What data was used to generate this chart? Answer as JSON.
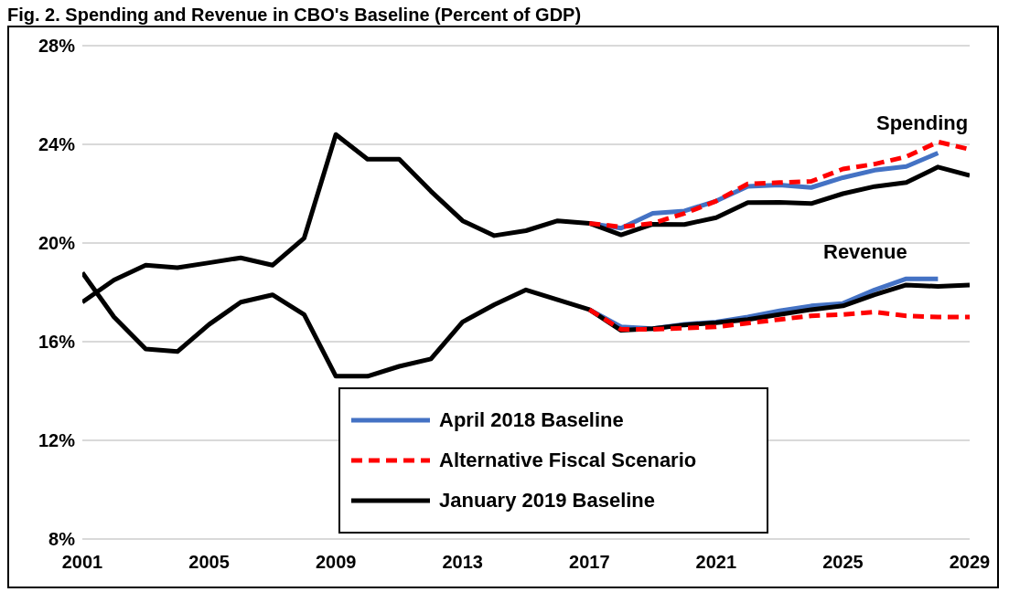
{
  "chart_data": {
    "type": "line",
    "title": "Fig. 2. Spending and Revenue in CBO's Baseline (Percent of GDP)",
    "x": [
      2001,
      2002,
      2003,
      2004,
      2005,
      2006,
      2007,
      2008,
      2009,
      2010,
      2011,
      2012,
      2013,
      2014,
      2015,
      2016,
      2017,
      2018,
      2019,
      2020,
      2021,
      2022,
      2023,
      2024,
      2025,
      2026,
      2027,
      2028,
      2029
    ],
    "series": [
      {
        "name": "April 2018 Baseline",
        "color": "#4472c4",
        "line_style": "solid",
        "values": [
          null,
          null,
          null,
          null,
          null,
          null,
          null,
          null,
          null,
          null,
          null,
          null,
          null,
          null,
          null,
          null,
          20.8,
          20.6,
          21.2,
          21.3,
          21.7,
          22.3,
          22.35,
          22.25,
          22.65,
          22.95,
          23.1,
          23.65,
          null
        ]
      },
      {
        "color": "#4472c4",
        "line_style": "solid",
        "values": [
          null,
          null,
          null,
          null,
          null,
          null,
          null,
          null,
          null,
          null,
          null,
          null,
          null,
          null,
          null,
          null,
          17.3,
          16.6,
          16.53,
          16.7,
          16.8,
          17.0,
          17.25,
          17.45,
          17.55,
          18.1,
          18.55,
          18.55,
          null
        ]
      },
      {
        "name": "Alternative Fiscal Scenario",
        "color": "#ff0000",
        "line_style": "dashed",
        "values": [
          null,
          null,
          null,
          null,
          null,
          null,
          null,
          null,
          null,
          null,
          null,
          null,
          null,
          null,
          null,
          null,
          20.8,
          20.65,
          20.8,
          21.2,
          21.7,
          22.4,
          22.45,
          22.5,
          23.0,
          23.2,
          23.5,
          24.1,
          23.8
        ]
      },
      {
        "color": "#ff0000",
        "line_style": "dashed",
        "values": [
          null,
          null,
          null,
          null,
          null,
          null,
          null,
          null,
          null,
          null,
          null,
          null,
          null,
          null,
          null,
          null,
          17.3,
          16.5,
          16.5,
          16.55,
          16.6,
          16.75,
          16.9,
          17.05,
          17.1,
          17.2,
          17.05,
          17.0,
          17.0
        ]
      },
      {
        "name": "January 2019 Baseline",
        "color": "#000000",
        "line_style": "solid",
        "values": [
          17.6,
          18.5,
          19.1,
          19.0,
          19.2,
          19.4,
          19.1,
          20.2,
          24.4,
          23.4,
          23.4,
          22.1,
          20.9,
          20.3,
          20.5,
          20.9,
          20.8,
          20.33,
          20.76,
          20.75,
          21.03,
          21.64,
          21.65,
          21.6,
          22.0,
          22.29,
          22.45,
          23.08,
          22.74
        ]
      },
      {
        "color": "#000000",
        "line_style": "solid",
        "values": [
          18.8,
          17.0,
          15.7,
          15.6,
          16.7,
          17.6,
          17.9,
          17.1,
          14.6,
          14.6,
          15.0,
          15.3,
          16.8,
          17.5,
          18.1,
          17.7,
          17.3,
          16.46,
          16.53,
          16.68,
          16.77,
          16.9,
          17.1,
          17.3,
          17.45,
          17.9,
          18.3,
          18.24,
          18.3
        ]
      }
    ],
    "annotations": [
      "Spending",
      "Revenue"
    ],
    "xlim": [
      2001,
      2029
    ],
    "xticks": [
      2001,
      2005,
      2009,
      2013,
      2017,
      2021,
      2025,
      2029
    ],
    "ylim": [
      8,
      28
    ],
    "yticks": [
      {
        "value": 8,
        "label": "8%"
      },
      {
        "value": 12,
        "label": "12%"
      },
      {
        "value": 16,
        "label": "16%"
      },
      {
        "value": 20,
        "label": "20%"
      },
      {
        "value": 24,
        "label": "24%"
      },
      {
        "value": 28,
        "label": "28%"
      }
    ],
    "grid": "y",
    "legend": "bottom",
    "marker": "none"
  }
}
